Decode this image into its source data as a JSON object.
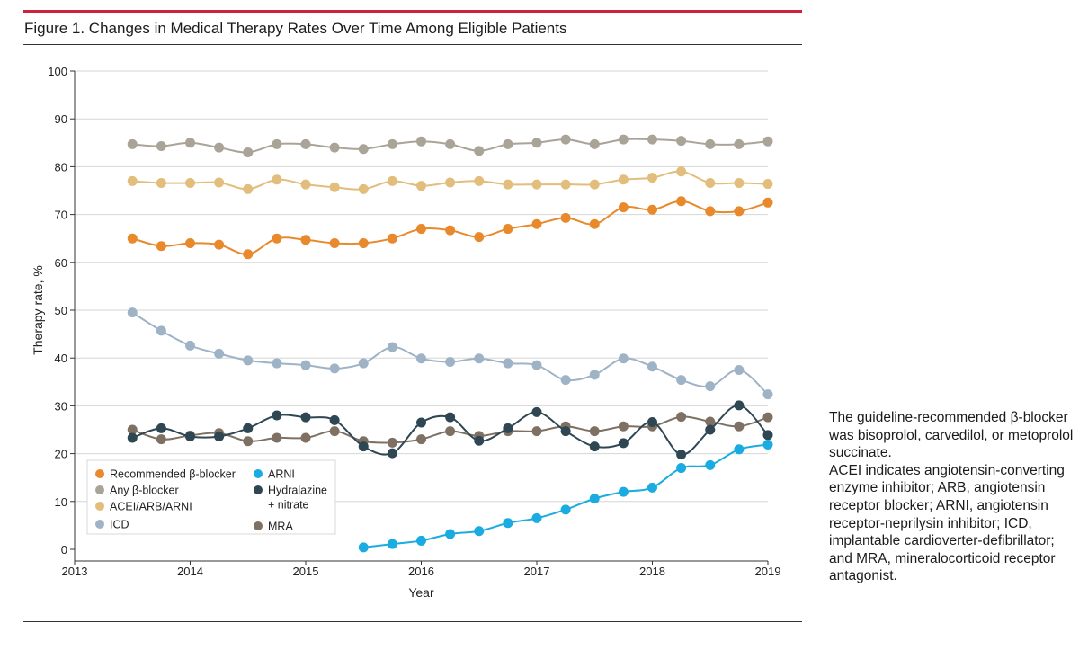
{
  "figure": {
    "title": "Figure 1. Changes in Medical Therapy Rates Over Time Among Eligible Patients",
    "note_lines": [
      "The guideline-recommended β-blocker was bisoprolol, carvedilol, or metoprolol succinate.",
      "ACEI indicates angiotensin-converting enzyme inhibitor; ARB, angiotensin receptor blocker; ARNI, angiotensin receptor-neprilysin inhibitor; ICD, implantable cardioverter-defibrillator; and MRA, mineralocorticoid receptor antagonist."
    ],
    "accent_color": "#d0213a"
  },
  "chart_data": {
    "type": "line",
    "xlabel": "Year",
    "ylabel": "Therapy rate, %",
    "xlim": [
      2013,
      2019
    ],
    "ylim": [
      0,
      100
    ],
    "x_ticks": [
      2013,
      2014,
      2015,
      2016,
      2017,
      2018,
      2019
    ],
    "y_ticks": [
      0,
      10,
      20,
      30,
      40,
      50,
      60,
      70,
      80,
      90,
      100
    ],
    "grid": true,
    "legend_position": "bottom-left",
    "x": [
      2013.5,
      2013.75,
      2014.0,
      2014.25,
      2014.5,
      2014.75,
      2015.0,
      2015.25,
      2015.5,
      2015.75,
      2016.0,
      2016.25,
      2016.5,
      2016.75,
      2017.0,
      2017.25,
      2017.5,
      2017.75,
      2018.0,
      2018.25,
      2018.5,
      2018.75,
      2019.0
    ],
    "series": [
      {
        "name": "Any β-blocker",
        "color": "#a9a497",
        "values": [
          84.7,
          84.3,
          85.0,
          84.0,
          83.0,
          84.7,
          84.7,
          84.0,
          83.7,
          84.7,
          85.3,
          84.7,
          83.3,
          84.7,
          85.0,
          85.7,
          84.7,
          85.7,
          85.7,
          85.4,
          84.7,
          84.7,
          85.3
        ]
      },
      {
        "name": "ACEI/ARB/ARNI",
        "color": "#e2bd7c",
        "values": [
          77.0,
          76.6,
          76.6,
          76.7,
          75.3,
          77.3,
          76.3,
          75.7,
          75.3,
          77.0,
          76.0,
          76.7,
          77.0,
          76.3,
          76.3,
          76.3,
          76.3,
          77.3,
          77.7,
          79.0,
          76.6,
          76.6,
          76.4
        ]
      },
      {
        "name": "Recommended β-blocker",
        "color": "#e8892b",
        "values": [
          65.0,
          63.4,
          64.0,
          63.7,
          61.7,
          65.0,
          64.7,
          64.0,
          64.0,
          65.0,
          67.0,
          66.7,
          65.3,
          67.0,
          68.0,
          69.3,
          68.0,
          71.5,
          71.0,
          72.8,
          70.7,
          70.7,
          72.5
        ]
      },
      {
        "name": "ICD",
        "color": "#9fb3c7",
        "values": [
          49.5,
          45.7,
          42.6,
          40.9,
          39.5,
          38.9,
          38.5,
          37.8,
          38.9,
          42.3,
          39.9,
          39.2,
          39.9,
          38.9,
          38.5,
          35.4,
          36.5,
          39.9,
          38.2,
          35.4,
          34.1,
          37.5,
          32.4
        ]
      },
      {
        "name": "MRA",
        "color": "#7e7164",
        "values": [
          25.0,
          23.0,
          23.8,
          24.3,
          22.6,
          23.3,
          23.3,
          24.7,
          22.6,
          22.3,
          23.0,
          24.7,
          23.7,
          24.7,
          24.7,
          25.7,
          24.7,
          25.7,
          25.7,
          27.7,
          26.7,
          25.7,
          27.6
        ]
      },
      {
        "name": "Hydralazine + nitrate",
        "color": "#2e4753",
        "values": [
          23.3,
          25.3,
          23.6,
          23.6,
          25.3,
          28.0,
          27.6,
          27.0,
          21.5,
          20.1,
          26.5,
          27.6,
          22.7,
          25.3,
          28.7,
          24.7,
          21.5,
          22.2,
          26.6,
          19.8,
          25.0,
          30.1,
          23.9
        ]
      },
      {
        "name": "ARNI",
        "color": "#1aace0",
        "x": [
          2015.5,
          2015.75,
          2016.0,
          2016.25,
          2016.5,
          2016.75,
          2017.0,
          2017.25,
          2017.5,
          2017.75,
          2018.0,
          2018.25,
          2018.5,
          2018.75,
          2019.0
        ],
        "values": [
          0.4,
          1.1,
          1.8,
          3.2,
          3.8,
          5.5,
          6.5,
          8.3,
          10.6,
          12.0,
          12.9,
          17.0,
          17.6,
          20.9,
          21.9
        ]
      }
    ],
    "legend": [
      {
        "label": "Recommended β-blocker",
        "color": "#e8892b"
      },
      {
        "label": "ARNI",
        "color": "#1aace0"
      },
      {
        "label": "Any β-blocker",
        "color": "#a9a497"
      },
      {
        "label": "Hydralazine",
        "label2": "+ nitrate",
        "color": "#2e4753"
      },
      {
        "label": "ACEI/ARB/ARNI",
        "color": "#e2bd7c"
      },
      {
        "label": "MRA",
        "color": "#7e7164"
      },
      {
        "label": "ICD",
        "color": "#9fb3c7"
      }
    ]
  }
}
